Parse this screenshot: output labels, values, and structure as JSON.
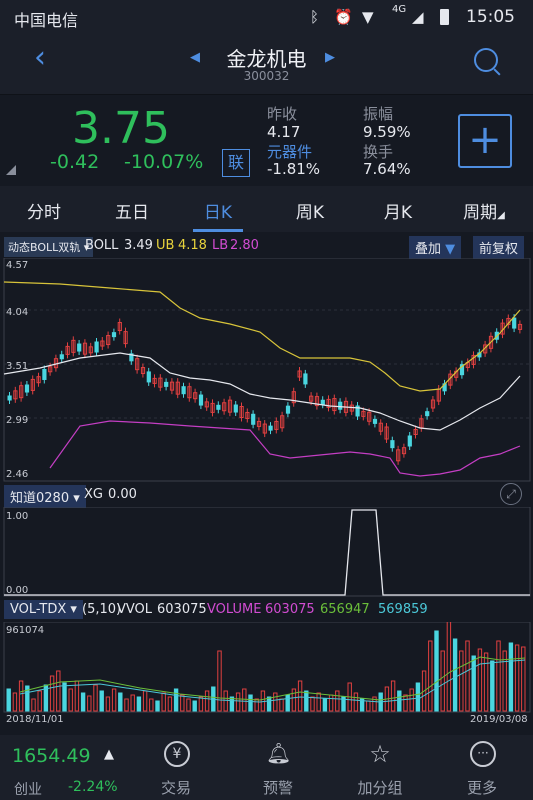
{
  "status": {
    "carrier": "中国电信",
    "network": "4G",
    "time": "15:05"
  },
  "header": {
    "title": "金龙机电",
    "code": "300032"
  },
  "quote": {
    "price": "3.75",
    "change": "-0.42",
    "change_pct": "-10.07%",
    "lian_label": "联",
    "prev_close_label": "昨收",
    "prev_close": "4.17",
    "sector_label": "元器件",
    "sector_change": "-1.81%",
    "amplitude_label": "振幅",
    "amplitude": "9.59%",
    "turnover_label": "换手",
    "turnover": "7.64%",
    "colors": {
      "down": "#2fbf5c",
      "up": "#e04040",
      "accent": "#4e8de0"
    }
  },
  "tabs": [
    {
      "label": "分时"
    },
    {
      "label": "五日"
    },
    {
      "label": "日K"
    },
    {
      "label": "周K"
    },
    {
      "label": "月K"
    },
    {
      "label": "周期"
    }
  ],
  "tabs_active_index": 2,
  "main_chart": {
    "indicator_chip": "动态BOLL双轨",
    "boll_label": "BOLL",
    "boll_val": "3.49",
    "ub_label": "UB",
    "ub_val": "4.18",
    "lb_label": "LB",
    "lb_val": "2.80",
    "overlay_btn": "叠加",
    "fq_btn": "前复权",
    "y_labels": [
      "4.57",
      "4.04",
      "3.51",
      "2.99",
      "2.46"
    ]
  },
  "zhidao": {
    "chip": "知道0280",
    "xg_label": "XG",
    "xg_val": "0.00",
    "y_labels": [
      "1.00",
      "0.00"
    ]
  },
  "vol": {
    "chip": "VOL-TDX",
    "params": "(5,10)",
    "vvol_label": "VVOL",
    "vvol_val": "603075",
    "volume_label": "VOLUME",
    "volume_val": "603075",
    "ma5_val": "656947",
    "ma10_val": "569859",
    "max_label": "961074",
    "date_start": "2018/11/01",
    "date_end": "2019/03/08"
  },
  "bottom": {
    "index_value": "1654.49",
    "index_name": "创业",
    "index_change": "-2.24%",
    "nav": [
      {
        "label": "交易",
        "icon": "yen-circle-icon"
      },
      {
        "label": "预警",
        "icon": "bell-icon"
      },
      {
        "label": "加分组",
        "icon": "star-icon"
      },
      {
        "label": "更多",
        "icon": "more-dots-icon"
      }
    ]
  }
}
